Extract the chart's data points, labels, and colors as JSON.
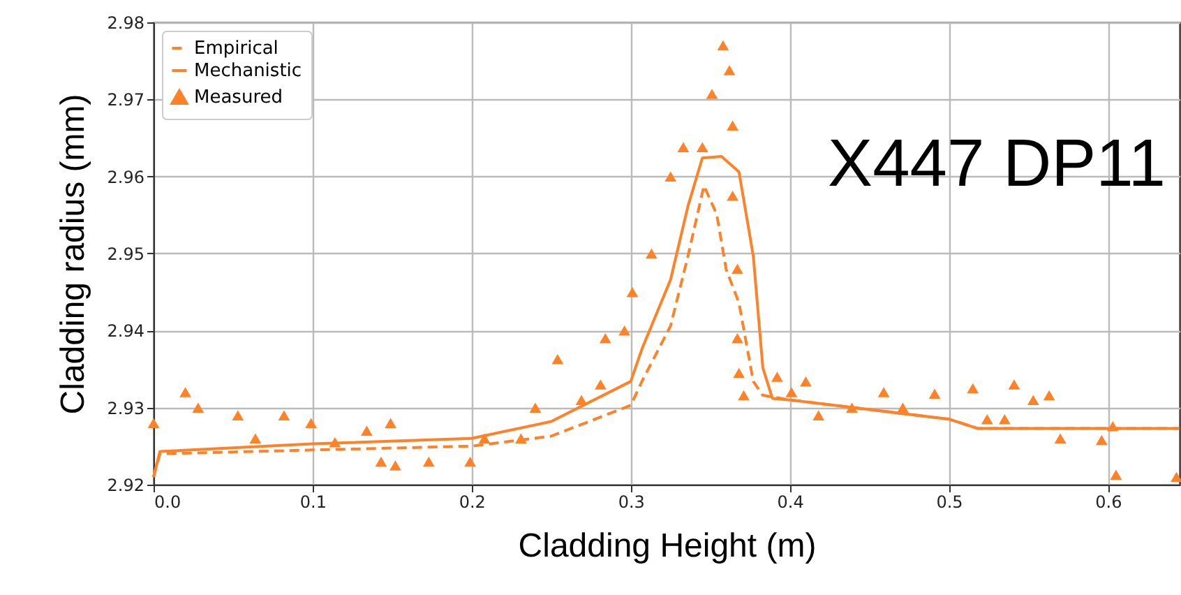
{
  "chart_data": {
    "type": "line",
    "xlabel": "Cladding Height (m)",
    "ylabel": "Cladding radius (mm)",
    "xlim": [
      0,
      0.645
    ],
    "xticks": [
      {
        "value": 0,
        "label": "0.0"
      },
      0.1,
      0.2,
      0.3,
      0.4,
      0.5,
      0.6
    ],
    "ylim": [
      2.92,
      2.98
    ],
    "yticks": [
      2.92,
      2.93,
      2.94,
      2.95,
      2.96,
      2.97,
      2.98
    ],
    "grid": true,
    "legend": "top left",
    "annotations": [
      "X447 DP11"
    ],
    "series": [
      {
        "name": "Empirical",
        "line_style": "dashed",
        "color": "#ff8128",
        "x": [
          0,
          0.004,
          0.1,
          0.2,
          0.25,
          0.3,
          0.307,
          0.325,
          0.336,
          0.346,
          0.354,
          0.36,
          0.368,
          0.377,
          0.383,
          0.4,
          0.5,
          0.518,
          0.645
        ],
        "values": [
          2.921,
          2.924,
          2.9245,
          2.925,
          2.9263,
          2.9303,
          2.9334,
          2.9406,
          2.9497,
          2.9588,
          2.9551,
          2.9479,
          2.9436,
          2.9334,
          2.9316,
          2.931,
          2.9285,
          2.9273,
          2.9273
        ]
      },
      {
        "name": "Mechanistic",
        "line_style": "solid",
        "color": "#ff8128",
        "x": [
          0,
          0.004,
          0.1,
          0.2,
          0.25,
          0.3,
          0.307,
          0.325,
          0.336,
          0.345,
          0.357,
          0.368,
          0.377,
          0.383,
          0.389,
          0.4,
          0.5,
          0.518,
          0.645
        ],
        "values": [
          2.921,
          2.9243,
          2.9253,
          2.926,
          2.9282,
          2.9334,
          2.9376,
          2.9466,
          2.9562,
          2.9624,
          2.9626,
          2.9606,
          2.9497,
          2.9352,
          2.9312,
          2.931,
          2.9285,
          2.9273,
          2.9273
        ]
      },
      {
        "name": "Measured",
        "type": "scatter",
        "marker": "triangle",
        "color": "#ff8128",
        "x": [
          0,
          0.02,
          0.028,
          0.053,
          0.064,
          0.082,
          0.099,
          0.114,
          0.134,
          0.143,
          0.149,
          0.152,
          0.173,
          0.199,
          0.208,
          0.231,
          0.24,
          0.254,
          0.269,
          0.281,
          0.284,
          0.296,
          0.301,
          0.313,
          0.325,
          0.333,
          0.345,
          0.351,
          0.358,
          0.362,
          0.364,
          0.364,
          0.367,
          0.367,
          0.368,
          0.371,
          0.392,
          0.401,
          0.41,
          0.418,
          0.439,
          0.459,
          0.471,
          0.491,
          0.515,
          0.524,
          0.535,
          0.541,
          0.553,
          0.563,
          0.57,
          0.596,
          0.603,
          0.605,
          0.643
        ],
        "values": [
          2.928,
          2.932,
          2.93,
          2.929,
          2.926,
          2.929,
          2.928,
          2.9255,
          2.927,
          2.923,
          2.928,
          2.9225,
          2.923,
          2.923,
          2.926,
          2.926,
          2.93,
          2.9363,
          2.931,
          2.933,
          2.939,
          2.94,
          2.945,
          2.95,
          2.96,
          2.9638,
          2.9638,
          2.9707,
          2.977,
          2.9738,
          2.9666,
          2.9575,
          2.948,
          2.939,
          2.9345,
          2.9316,
          2.934,
          2.932,
          2.9334,
          2.929,
          2.93,
          2.932,
          2.93,
          2.9318,
          2.9325,
          2.9285,
          2.9285,
          2.933,
          2.931,
          2.9316,
          2.926,
          2.9258,
          2.9276,
          2.9213,
          2.921
        ]
      }
    ]
  }
}
